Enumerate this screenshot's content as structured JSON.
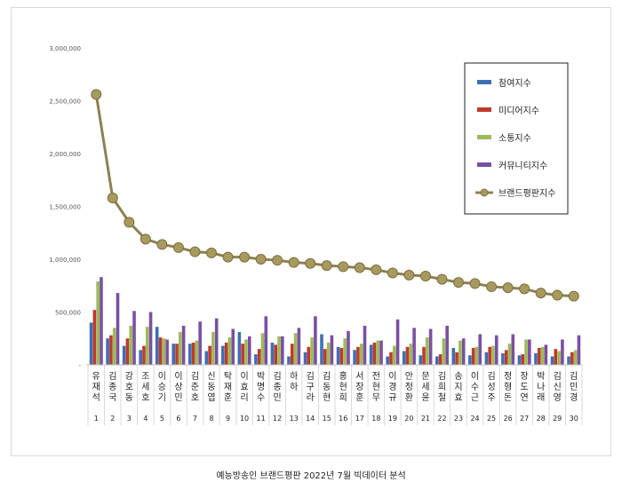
{
  "caption": "예능방송인 브랜드평판  2022년 7월 빅데이터 분석",
  "chart_data": {
    "type": "bar",
    "y_ticks": [
      "-",
      "500,000",
      "1,000,000",
      "1,500,000",
      "2,000,000",
      "2,500,000",
      "3,000,000"
    ],
    "ylim": [
      0,
      3000000
    ],
    "grid": false,
    "legend_position": "top-right",
    "categories": [
      "유재석",
      "김종국",
      "강호동",
      "조세호",
      "이승기",
      "이상민",
      "김준호",
      "신동엽",
      "탁재훈",
      "이효리",
      "박명수",
      "김종민",
      "하하",
      "김구라",
      "김동현",
      "홍현희",
      "서장훈",
      "전현무",
      "이경규",
      "안정환",
      "문세윤",
      "김희철",
      "송지효",
      "이수근",
      "김성주",
      "정형돈",
      "장도연",
      "박나래",
      "김신영",
      "김민경"
    ],
    "indices": [
      "1",
      "2",
      "3",
      "4",
      "5",
      "6",
      "7",
      "8",
      "9",
      "10",
      "11",
      "12",
      "13",
      "14",
      "15",
      "16",
      "17",
      "18",
      "19",
      "20",
      "21",
      "22",
      "23",
      "24",
      "25",
      "26",
      "27",
      "28",
      "29",
      "30"
    ],
    "series": [
      {
        "name": "참여지수",
        "kind": "bar",
        "color": "#3d6fb6",
        "values": [
          400000,
          250000,
          180000,
          140000,
          360000,
          200000,
          200000,
          130000,
          180000,
          310000,
          100000,
          210000,
          80000,
          120000,
          290000,
          170000,
          140000,
          190000,
          80000,
          130000,
          90000,
          80000,
          160000,
          90000,
          120000,
          110000,
          90000,
          110000,
          80000,
          80000
        ]
      },
      {
        "name": "미디어지수",
        "kind": "bar",
        "color": "#c0392b",
        "values": [
          520000,
          280000,
          250000,
          180000,
          260000,
          200000,
          210000,
          180000,
          210000,
          200000,
          150000,
          190000,
          200000,
          170000,
          150000,
          160000,
          170000,
          210000,
          120000,
          170000,
          170000,
          100000,
          120000,
          160000,
          170000,
          140000,
          100000,
          160000,
          150000,
          120000
        ]
      },
      {
        "name": "소통지수",
        "kind": "bar",
        "color": "#9bbb59",
        "values": [
          790000,
          350000,
          370000,
          360000,
          250000,
          310000,
          230000,
          310000,
          260000,
          240000,
          300000,
          270000,
          300000,
          260000,
          210000,
          250000,
          200000,
          230000,
          180000,
          200000,
          260000,
          250000,
          230000,
          170000,
          180000,
          200000,
          240000,
          170000,
          130000,
          140000
        ]
      },
      {
        "name": "커뮤니티지수",
        "kind": "bar",
        "color": "#7b4fa3",
        "values": [
          830000,
          680000,
          510000,
          500000,
          240000,
          370000,
          410000,
          440000,
          340000,
          270000,
          460000,
          270000,
          350000,
          460000,
          280000,
          320000,
          370000,
          230000,
          430000,
          350000,
          340000,
          370000,
          250000,
          290000,
          280000,
          290000,
          240000,
          190000,
          240000,
          280000
        ]
      },
      {
        "name": "브랜드평판지수",
        "kind": "line",
        "color": "#8c8150",
        "values": [
          2560000,
          1580000,
          1350000,
          1190000,
          1140000,
          1110000,
          1070000,
          1060000,
          1020000,
          1020000,
          1000000,
          990000,
          970000,
          960000,
          940000,
          930000,
          920000,
          900000,
          870000,
          850000,
          840000,
          810000,
          780000,
          770000,
          740000,
          730000,
          720000,
          680000,
          660000,
          650000
        ]
      }
    ]
  }
}
